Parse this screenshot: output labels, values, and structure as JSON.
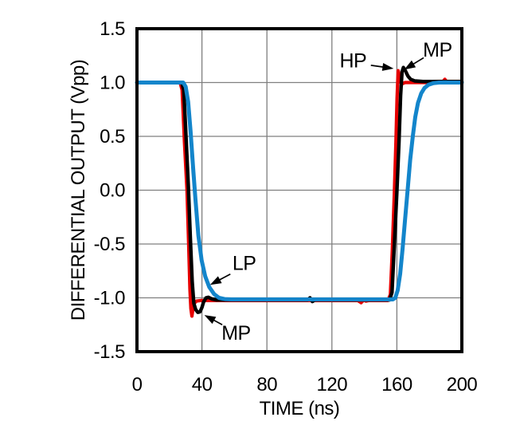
{
  "figure": {
    "background": "#ffffff",
    "frame_color": "#000000",
    "grid_color": "#7f7f7f"
  },
  "chart_data": {
    "type": "line",
    "title": "",
    "xlabel": "TIME (ns)",
    "ylabel": "DIFFERENTIAL OUTPUT (Vpp)",
    "xlim": [
      0,
      200
    ],
    "ylim": [
      -1.5,
      1.5
    ],
    "xtick_values": [
      0,
      40,
      80,
      120,
      160,
      200
    ],
    "xtick_labels": [
      "0",
      "40",
      "80",
      "120",
      "160",
      "200"
    ],
    "ytick_values": [
      1.5,
      1.0,
      0.5,
      0.0,
      -0.5,
      -1.0,
      -1.5
    ],
    "ytick_labels": [
      "1.5",
      "1.0",
      "0.5",
      "0.0",
      "-0.5",
      "-1.0",
      "-1.5"
    ],
    "grid": true,
    "legend_position": "none (inline arrow annotations)",
    "description": "Large-signal pulse response: output square pulse 1.0 Vpp high from 0-28 ns, low -1.0 Vpp from ~35-157 ns, returning high. HP (red) fastest with narrow over/undershoot, MP (black) with larger wider over/undershoot, LP (blue) slowest with no overshoot.",
    "series": [
      {
        "name": "HP",
        "color": "#e60000",
        "width": 4.2,
        "points": [
          [
            0,
            1.0
          ],
          [
            26.5,
            1.0
          ],
          [
            27.8,
            0.93
          ],
          [
            29.2,
            0.45
          ],
          [
            30.8,
            0.0
          ],
          [
            31.8,
            -0.5
          ],
          [
            32.6,
            -0.92
          ],
          [
            33.2,
            -1.1
          ],
          [
            33.8,
            -1.17
          ],
          [
            34.5,
            -1.1
          ],
          [
            35.3,
            -1.05
          ],
          [
            36.6,
            -1.03
          ],
          [
            39,
            -1.025
          ],
          [
            70,
            -1.025
          ],
          [
            136,
            -1.025
          ],
          [
            138,
            -1.045
          ],
          [
            139.5,
            -1.02
          ],
          [
            141,
            -1.03
          ],
          [
            142.5,
            -1.025
          ],
          [
            154.5,
            -1.025
          ],
          [
            156,
            -0.97
          ],
          [
            157.2,
            -0.55
          ],
          [
            158.4,
            -0.05
          ],
          [
            159.4,
            0.45
          ],
          [
            160.1,
            0.85
          ],
          [
            160.8,
            1.11
          ],
          [
            161.6,
            1.05
          ],
          [
            162.4,
            1.0
          ],
          [
            163.6,
            0.99
          ],
          [
            165,
            1.0
          ],
          [
            188,
            1.0
          ],
          [
            189.5,
            1.03
          ],
          [
            191,
            1.0
          ],
          [
            200,
            1.0
          ]
        ]
      },
      {
        "name": "MP",
        "color": "#000000",
        "width": 4.4,
        "points": [
          [
            0,
            1.0
          ],
          [
            27.5,
            1.0
          ],
          [
            28.8,
            0.93
          ],
          [
            30.2,
            0.5
          ],
          [
            31.6,
            0.05
          ],
          [
            32.9,
            -0.45
          ],
          [
            34,
            -0.85
          ],
          [
            35,
            -1.05
          ],
          [
            36.2,
            -1.11
          ],
          [
            37.5,
            -1.135
          ],
          [
            38.8,
            -1.13
          ],
          [
            40,
            -1.09
          ],
          [
            41,
            -1.04
          ],
          [
            42.5,
            -1.0
          ],
          [
            44,
            -0.995
          ],
          [
            46,
            -1.01
          ],
          [
            49,
            -1.02
          ],
          [
            70,
            -1.02
          ],
          [
            105,
            -1.02
          ],
          [
            106.5,
            -1.0
          ],
          [
            108,
            -1.035
          ],
          [
            109.5,
            -1.02
          ],
          [
            140,
            -1.02
          ],
          [
            155.5,
            -1.02
          ],
          [
            157,
            -0.95
          ],
          [
            158.5,
            -0.5
          ],
          [
            160,
            -0.02
          ],
          [
            161.3,
            0.45
          ],
          [
            162.3,
            0.88
          ],
          [
            163.2,
            1.1
          ],
          [
            164,
            1.14
          ],
          [
            165.2,
            1.11
          ],
          [
            166.8,
            1.06
          ],
          [
            168.5,
            1.03
          ],
          [
            171,
            1.015
          ],
          [
            176,
            1.01
          ],
          [
            200,
            1.01
          ]
        ]
      },
      {
        "name": "LP",
        "color": "#1385cb",
        "width": 5,
        "points": [
          [
            0,
            1.0
          ],
          [
            28.5,
            1.0
          ],
          [
            30,
            0.96
          ],
          [
            31.5,
            0.82
          ],
          [
            33,
            0.55
          ],
          [
            34.5,
            0.22
          ],
          [
            36,
            -0.08
          ],
          [
            37.8,
            -0.42
          ],
          [
            39.8,
            -0.65
          ],
          [
            42,
            -0.8
          ],
          [
            44.5,
            -0.9
          ],
          [
            47.5,
            -0.965
          ],
          [
            50.5,
            -1.0
          ],
          [
            54,
            -1.012
          ],
          [
            58,
            -1.015
          ],
          [
            100,
            -1.015
          ],
          [
            140,
            -1.015
          ],
          [
            157.5,
            -1.015
          ],
          [
            159,
            -1.0
          ],
          [
            160.5,
            -0.93
          ],
          [
            162,
            -0.78
          ],
          [
            163.5,
            -0.55
          ],
          [
            165,
            -0.28
          ],
          [
            166.6,
            0.0
          ],
          [
            168.2,
            0.28
          ],
          [
            169.8,
            0.5
          ],
          [
            171.3,
            0.68
          ],
          [
            173,
            0.81
          ],
          [
            175,
            0.9
          ],
          [
            177,
            0.95
          ],
          [
            179.5,
            0.98
          ],
          [
            182.5,
            0.995
          ],
          [
            186,
            1.0
          ],
          [
            200,
            1.0
          ]
        ]
      }
    ],
    "annotations": [
      {
        "text": "HP",
        "target_series": "HP",
        "text_t": 133,
        "text_v": 1.2,
        "arrow": [
          [
            144,
            1.16
          ],
          [
            158,
            1.13
          ]
        ]
      },
      {
        "text": "MP",
        "target_series": "MP",
        "text_t": 185,
        "text_v": 1.3,
        "arrow": [
          [
            176.5,
            1.23
          ],
          [
            164.5,
            1.12
          ]
        ]
      },
      {
        "text": "LP",
        "target_series": "LP",
        "text_t": 66,
        "text_v": -0.68,
        "arrow": [
          [
            57.5,
            -0.78
          ],
          [
            45,
            -0.88
          ]
        ]
      },
      {
        "text": "MP",
        "target_series": "MP",
        "text_t": 61,
        "text_v": -1.33,
        "arrow": [
          [
            52.5,
            -1.25
          ],
          [
            41.5,
            -1.16
          ]
        ]
      }
    ]
  }
}
